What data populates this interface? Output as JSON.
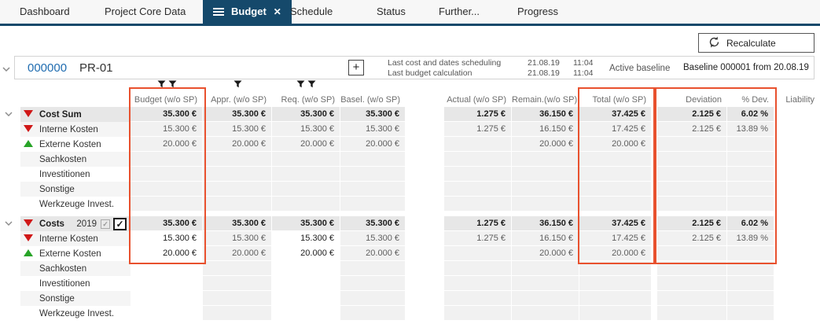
{
  "colors": {
    "accent_navy": "#15496b",
    "highlight_orange": "#e8512e",
    "negative_red": "#d01818",
    "positive_green": "#28a428",
    "project_id_blue": "#1f6cb0"
  },
  "tab_bar": {
    "tabs": [
      {
        "label": "Dashboard",
        "active": false
      },
      {
        "label": "Project Core Data",
        "active": false
      },
      {
        "label": "Budget",
        "active": true,
        "has_menu_icon": true,
        "has_close_icon": true
      },
      {
        "label": "Schedule",
        "active": false
      },
      {
        "label": "Status",
        "active": false
      },
      {
        "label": "Further...",
        "active": false
      },
      {
        "label": "Progress",
        "active": false
      }
    ]
  },
  "toolbar": {
    "recalculate_label": "Recalculate"
  },
  "project": {
    "id": "000000",
    "code": "PR-01",
    "add_button": "+",
    "stats": [
      {
        "label": "Last cost and dates scheduling",
        "date": "21.08.19",
        "time": "11:04"
      },
      {
        "label": "Last budget calculation",
        "date": "21.08.19",
        "time": "11:04"
      }
    ],
    "active_baseline_label": "Active baseline",
    "active_baseline_value": "Baseline 000001 from 20.08.19"
  },
  "table": {
    "columns": [
      {
        "key": "budget",
        "label": "Budget (w/o SP)",
        "filters": 2,
        "highlight": true
      },
      {
        "key": "appr",
        "label": "Appr. (w/o SP)",
        "filters": 1,
        "highlight": false
      },
      {
        "key": "req",
        "label": "Req. (w/o SP)",
        "filters": 2,
        "highlight": false
      },
      {
        "key": "basel",
        "label": "Basel. (w/o SP)",
        "filters": 0,
        "highlight": false
      },
      {
        "key": "actual",
        "label": "Actual (w/o SP)",
        "filters": 0,
        "highlight": false
      },
      {
        "key": "remain",
        "label": "Remain.(w/o SP)",
        "filters": 0,
        "highlight": false
      },
      {
        "key": "total",
        "label": "Total (w/o SP)",
        "filters": 0,
        "highlight": true
      },
      {
        "key": "deviation",
        "label": "Deviation",
        "filters": 0,
        "highlight": true
      },
      {
        "key": "pctdev",
        "label": "% Dev.",
        "filters": 0,
        "highlight": true
      },
      {
        "key": "liability",
        "label": "Liability",
        "filters": 0,
        "highlight": false
      }
    ],
    "blocks": [
      {
        "editable": false,
        "rows": [
          {
            "label": "Cost Sum",
            "type": "total",
            "expander": true,
            "indicator": "red-down",
            "values": {
              "budget": "35.300 €",
              "appr": "35.300 €",
              "req": "35.300 €",
              "basel": "35.300 €",
              "actual": "1.275 €",
              "remain": "36.150 €",
              "total": "37.425 €",
              "deviation": "2.125 €",
              "pctdev": "6.02 %",
              "liability": ""
            }
          },
          {
            "label": "Interne Kosten",
            "type": "detail",
            "indicator": "red-down",
            "values": {
              "budget": "15.300 €",
              "appr": "15.300 €",
              "req": "15.300 €",
              "basel": "15.300 €",
              "actual": "1.275 €",
              "remain": "16.150 €",
              "total": "17.425 €",
              "deviation": "2.125 €",
              "pctdev": "13.89 %",
              "liability": ""
            }
          },
          {
            "label": "Externe Kosten",
            "type": "detail",
            "indicator": "green-up",
            "values": {
              "budget": "20.000 €",
              "appr": "20.000 €",
              "req": "20.000 €",
              "basel": "20.000 €",
              "actual": "",
              "remain": "20.000 €",
              "total": "20.000 €",
              "deviation": "",
              "pctdev": "",
              "liability": ""
            }
          },
          {
            "label": "Sachkosten",
            "type": "detail",
            "indicator": null,
            "values": {}
          },
          {
            "label": "Investitionen",
            "type": "detail",
            "indicator": null,
            "values": {}
          },
          {
            "label": "Sonstige",
            "type": "detail",
            "indicator": null,
            "values": {}
          },
          {
            "label": "Werkzeuge Invest.",
            "type": "detail",
            "indicator": null,
            "values": {}
          }
        ]
      },
      {
        "editable": true,
        "rows": [
          {
            "label": "Costs",
            "type": "total",
            "expander": true,
            "indicator": "red-down",
            "year": "2019",
            "year_checkbox_checked": true,
            "row_checkbox_checked": true,
            "values": {
              "budget": "35.300 €",
              "appr": "35.300 €",
              "req": "35.300 €",
              "basel": "35.300 €",
              "actual": "1.275 €",
              "remain": "36.150 €",
              "total": "37.425 €",
              "deviation": "2.125 €",
              "pctdev": "6.02 %",
              "liability": ""
            }
          },
          {
            "label": "Interne Kosten",
            "type": "detail",
            "indicator": "red-down",
            "values": {
              "budget": "15.300 €",
              "appr": "15.300 €",
              "req": "15.300 €",
              "basel": "15.300 €",
              "actual": "1.275 €",
              "remain": "16.150 €",
              "total": "17.425 €",
              "deviation": "2.125 €",
              "pctdev": "13.89 %",
              "liability": ""
            }
          },
          {
            "label": "Externe Kosten",
            "type": "detail",
            "indicator": "green-up",
            "values": {
              "budget": "20.000 €",
              "appr": "20.000 €",
              "req": "20.000 €",
              "basel": "20.000 €",
              "actual": "",
              "remain": "20.000 €",
              "total": "20.000 €",
              "deviation": "",
              "pctdev": "",
              "liability": ""
            }
          },
          {
            "label": "Sachkosten",
            "type": "detail",
            "indicator": null,
            "values": {}
          },
          {
            "label": "Investitionen",
            "type": "detail",
            "indicator": null,
            "values": {}
          },
          {
            "label": "Sonstige",
            "type": "detail",
            "indicator": null,
            "values": {}
          },
          {
            "label": "Werkzeuge Invest.",
            "type": "detail",
            "indicator": null,
            "values": {}
          }
        ]
      }
    ]
  }
}
